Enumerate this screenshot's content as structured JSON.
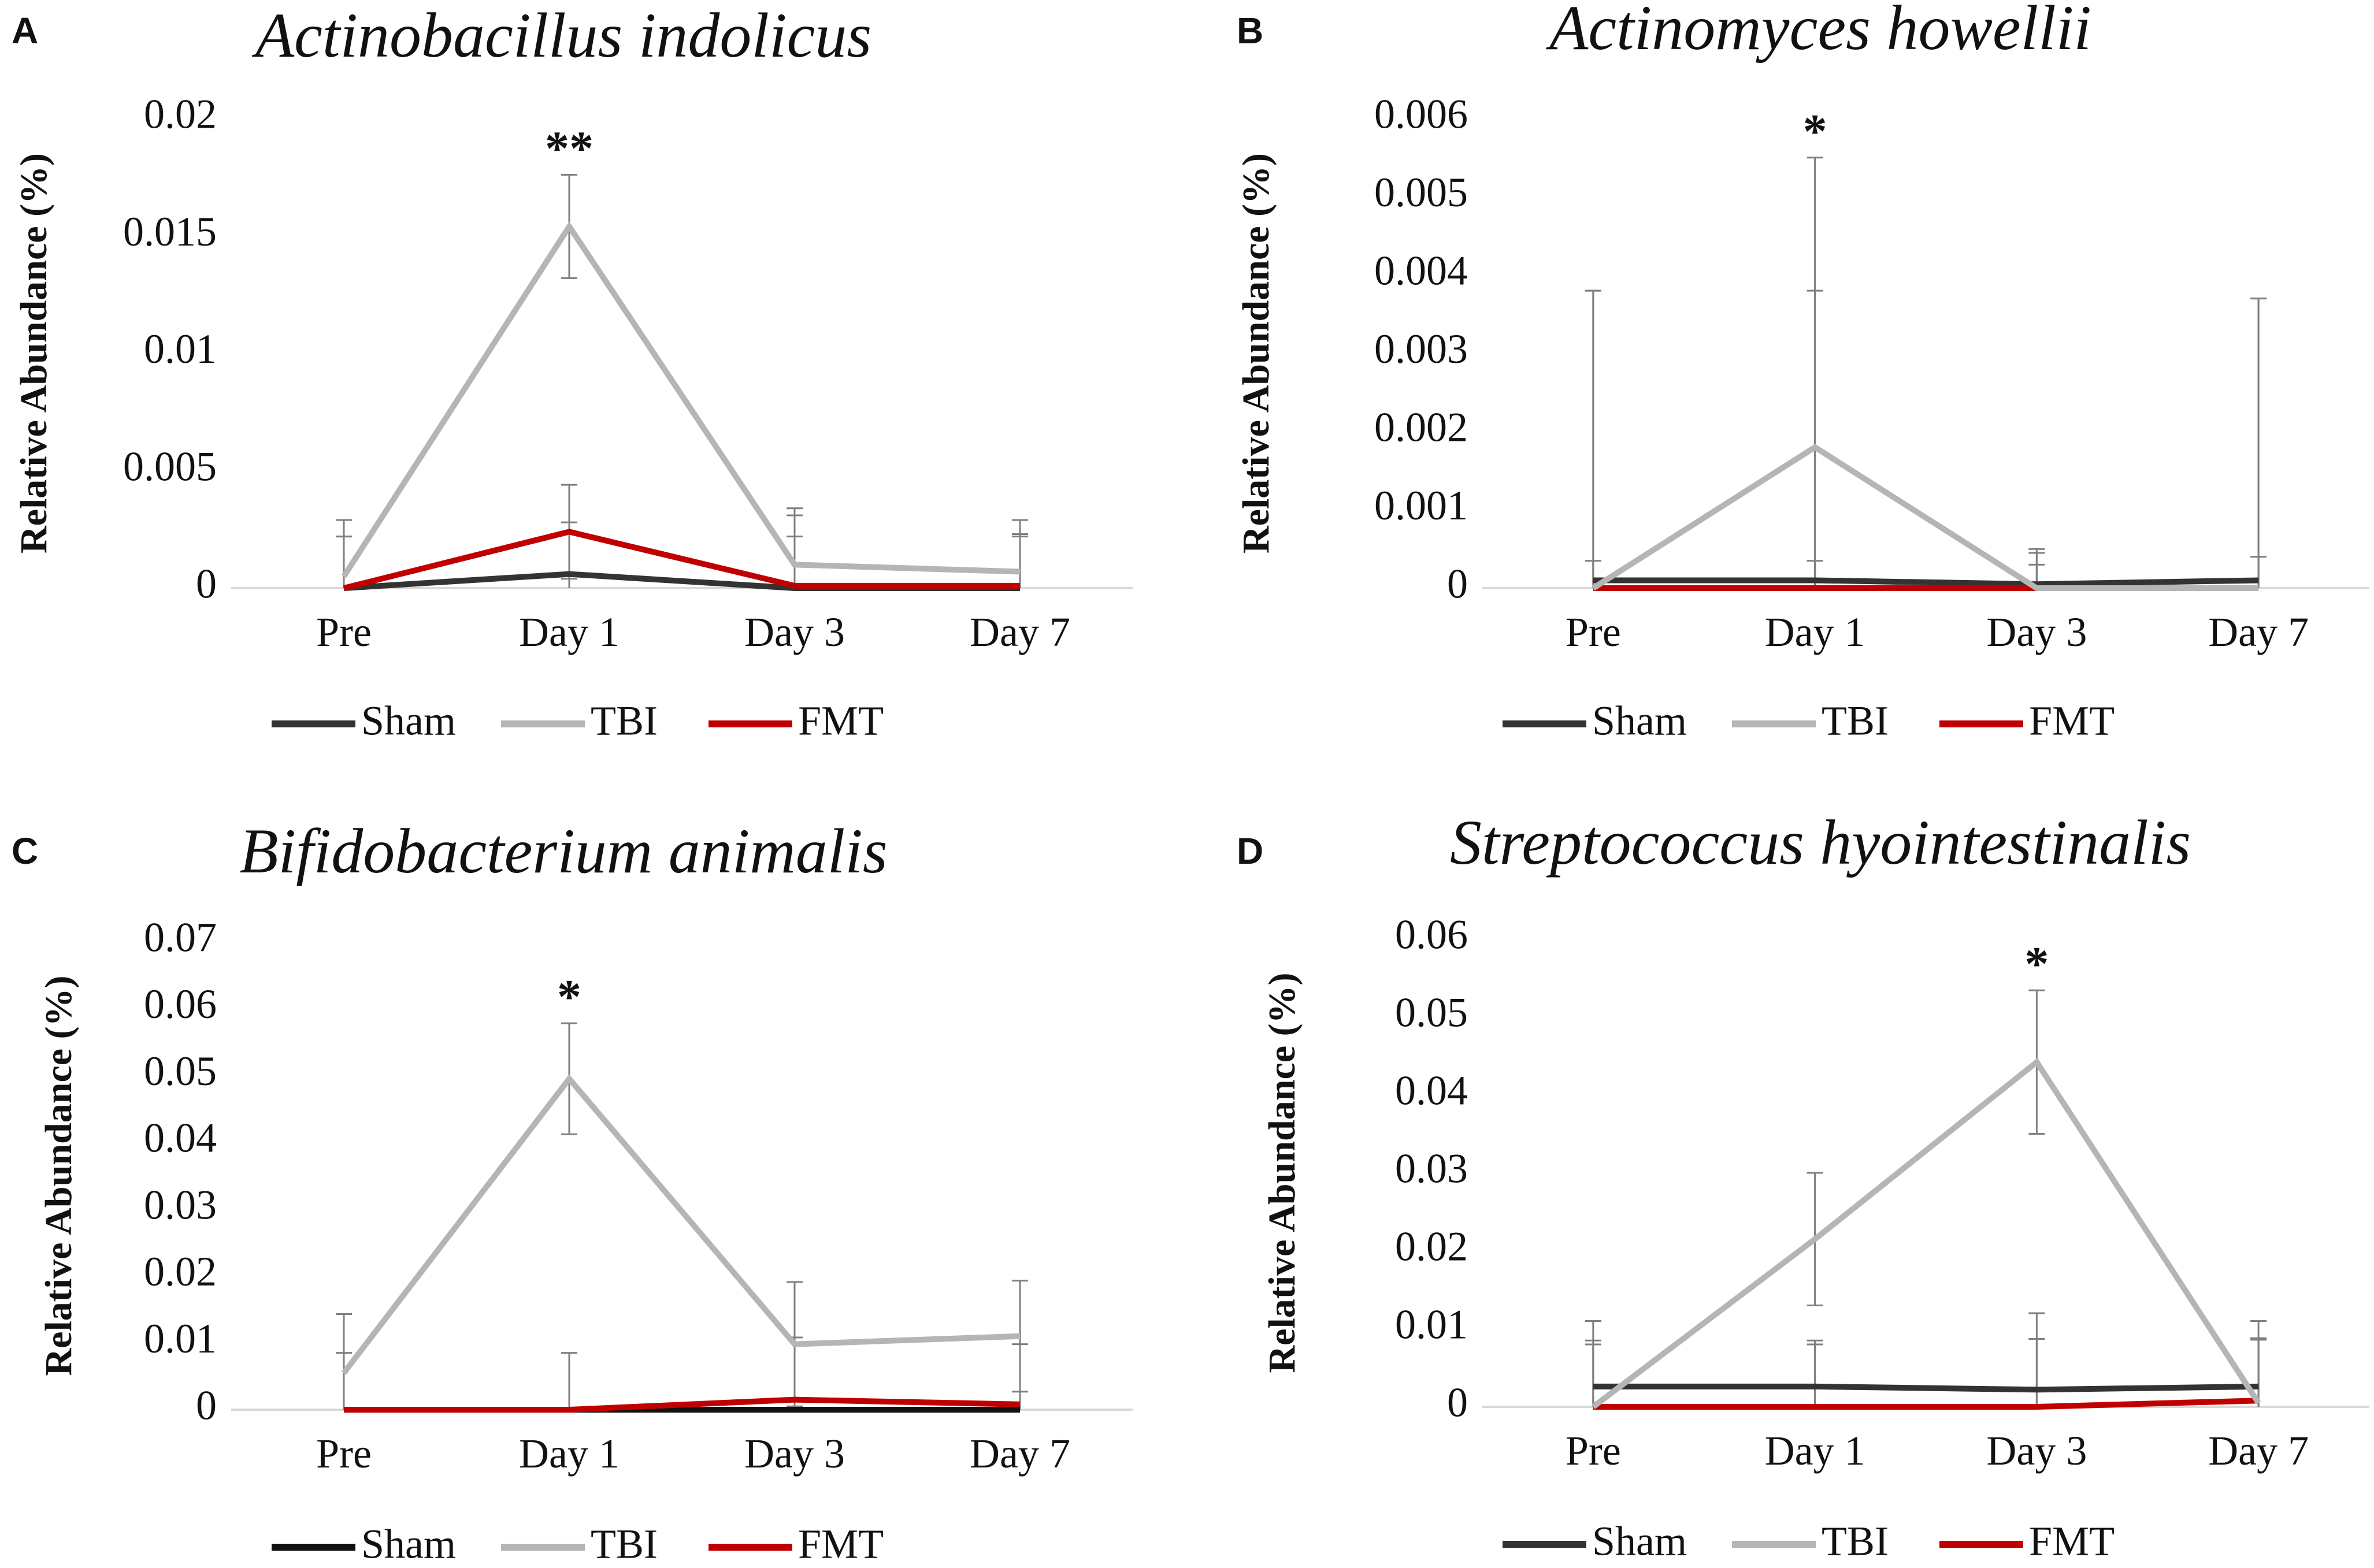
{
  "chart_data": [
    {
      "panel": "A",
      "type": "line",
      "title": "Actinobacillus indolicus",
      "ylabel": "Relative Abundance (%)",
      "xlabel": "",
      "categories": [
        "Pre",
        "Day 1",
        "Day 3",
        "Day 7"
      ],
      "ylim": [
        0,
        0.02
      ],
      "yticks": [
        0,
        0.005,
        0.01,
        0.015,
        0.02
      ],
      "ytick_labels": [
        "0",
        "0.005",
        "0.01",
        "0.015",
        "0.02"
      ],
      "series": [
        {
          "name": "Sham",
          "color": "#333333",
          "values": [
            0.0,
            0.0006,
            0.0,
            0.0
          ],
          "errors": [
            0.0022,
            0.0022,
            0.0022,
            0.0022
          ]
        },
        {
          "name": "TBI",
          "color": "#b5b5b5",
          "values": [
            0.0005,
            0.0154,
            0.001,
            0.0007
          ],
          "errors": [
            0.0024,
            0.0022,
            0.0024,
            0.0022
          ]
        },
        {
          "name": "FMT",
          "color": "#c00000",
          "values": [
            0.0,
            0.0024,
            0.0001,
            0.0001
          ],
          "errors": [
            0.0022,
            0.002,
            0.003,
            0.0022
          ]
        }
      ],
      "significance": [
        {
          "category": "Day 1",
          "label": "**"
        }
      ],
      "grid": false,
      "legend_position": "bottom"
    },
    {
      "panel": "B",
      "type": "line",
      "title": "Actinomyces howellii",
      "ylabel": "Relative Abundance (%)",
      "xlabel": "",
      "categories": [
        "Pre",
        "Day 1",
        "Day 3",
        "Day 7"
      ],
      "ylim": [
        0,
        0.006
      ],
      "yticks": [
        0,
        0.001,
        0.002,
        0.003,
        0.004,
        0.005,
        0.006
      ],
      "ytick_labels": [
        "0",
        "0.001",
        "0.002",
        "0.003",
        "0.004",
        "0.005",
        "0.006"
      ],
      "series": [
        {
          "name": "Sham",
          "color": "#333333",
          "values": [
            0.0001,
            0.0001,
            5e-05,
            0.0001
          ],
          "errors": [
            0.0037,
            0.0037,
            0.0004,
            0.0036
          ]
        },
        {
          "name": "TBI",
          "color": "#b5b5b5",
          "values": [
            0.0,
            0.0018,
            0.0,
            0.0
          ],
          "errors": [
            0.0038,
            0.0037,
            0.0005,
            0.0037
          ]
        },
        {
          "name": "FMT",
          "color": "#c00000",
          "values": [
            0.0,
            0.0,
            0.0,
            0.0
          ],
          "errors": [
            0.00035,
            0.00035,
            0.0003,
            0.0004
          ]
        }
      ],
      "significance": [
        {
          "category": "Day 1",
          "label": "*"
        }
      ],
      "grid": false,
      "legend_position": "bottom"
    },
    {
      "panel": "C",
      "type": "line",
      "title": "Bifidobacterium animalis",
      "ylabel": "Relative Abundance (%)",
      "xlabel": "",
      "categories": [
        "Pre",
        "Day 1",
        "Day 3",
        "Day 7"
      ],
      "ylim": [
        0,
        0.07
      ],
      "yticks": [
        0,
        0.01,
        0.02,
        0.03,
        0.04,
        0.05,
        0.06,
        0.07
      ],
      "ytick_labels": [
        "0",
        "0.01",
        "0.02",
        "0.03",
        "0.04",
        "0.05",
        "0.06",
        "0.07"
      ],
      "series": [
        {
          "name": "Sham",
          "color": "#111111",
          "values": [
            0.0,
            0.0,
            0.0,
            0.0
          ],
          "errors": [
            0.0,
            0.0,
            0.0,
            0.0
          ]
        },
        {
          "name": "TBI",
          "color": "#b5b5b5",
          "values": [
            0.0055,
            0.0495,
            0.0098,
            0.011
          ],
          "errors": [
            0.0088,
            0.0083,
            0.0093,
            0.0083
          ]
        },
        {
          "name": "FMT",
          "color": "#c00000",
          "values": [
            0.0,
            0.0,
            0.0015,
            0.0008
          ],
          "errors": [
            0.0085,
            0.0085,
            0.0093,
            0.009
          ]
        }
      ],
      "significance": [
        {
          "category": "Day 1",
          "label": "*"
        }
      ],
      "grid": false,
      "legend_position": "bottom"
    },
    {
      "panel": "D",
      "type": "line",
      "title": "Streptococcus hyointestinalis",
      "ylabel": "Relative Abundance (%)",
      "xlabel": "",
      "categories": [
        "Pre",
        "Day 1",
        "Day 3",
        "Day 7"
      ],
      "ylim": [
        0,
        0.06
      ],
      "yticks": [
        0,
        0.01,
        0.02,
        0.03,
        0.04,
        0.05,
        0.06
      ],
      "ytick_labels": [
        "0",
        "0.01",
        "0.02",
        "0.03",
        "0.04",
        "0.05",
        "0.06"
      ],
      "series": [
        {
          "name": "Sham",
          "color": "#333333",
          "values": [
            0.0026,
            0.0026,
            0.0022,
            0.0026
          ],
          "errors": [
            0.0059,
            0.0059,
            0.0065,
            0.006
          ]
        },
        {
          "name": "TBI",
          "color": "#b5b5b5",
          "values": [
            0.0,
            0.0215,
            0.0442,
            0.0005
          ],
          "errors": [
            0.011,
            0.0085,
            0.0092,
            0.0105
          ]
        },
        {
          "name": "FMT",
          "color": "#c00000",
          "values": [
            0.0,
            0.0,
            0.0,
            0.0008
          ],
          "errors": [
            0.008,
            0.008,
            0.012,
            0.008
          ]
        }
      ],
      "significance": [
        {
          "category": "Day 3",
          "label": "*"
        }
      ],
      "grid": false,
      "legend_position": "bottom"
    }
  ]
}
